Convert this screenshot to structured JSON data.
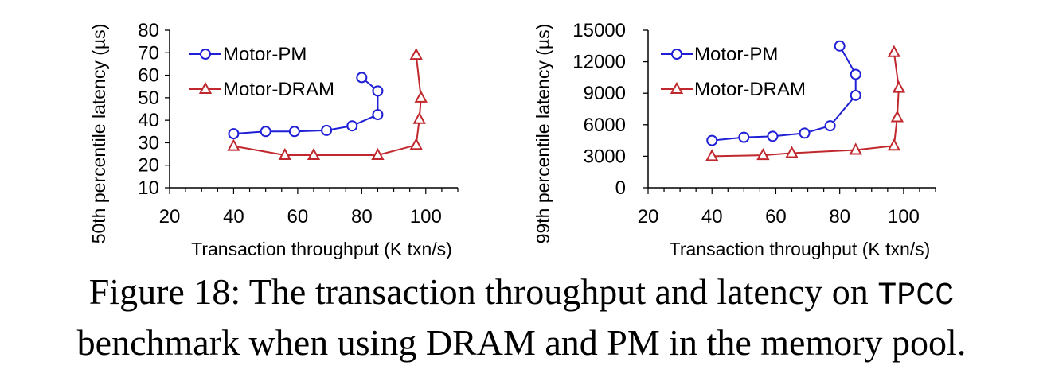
{
  "chart_data": [
    {
      "type": "line",
      "xlabel": "Transaction throughput (K txn/s)",
      "ylabel": "50th percentile latency (µs)",
      "xlim": [
        20,
        110
      ],
      "ylim": [
        10,
        80
      ],
      "xticks": [
        20,
        40,
        60,
        80,
        100
      ],
      "yticks": [
        10,
        20,
        30,
        40,
        50,
        60,
        70,
        80
      ],
      "legend_position": "top-left",
      "series": [
        {
          "name": "Motor-PM",
          "color": "#1f1fd6",
          "marker": "circle",
          "x": [
            40,
            50,
            59,
            69,
            77,
            85,
            85,
            80
          ],
          "y": [
            34,
            35,
            35,
            35.5,
            37.5,
            42.5,
            53,
            59
          ]
        },
        {
          "name": "Motor-DRAM",
          "color": "#c0282d",
          "marker": "triangle",
          "x": [
            40,
            56,
            65,
            85,
            97,
            98,
            98.5,
            97
          ],
          "y": [
            28.5,
            24.5,
            24.5,
            24.5,
            29,
            40.5,
            50,
            69
          ]
        }
      ]
    },
    {
      "type": "line",
      "xlabel": "Transaction throughput (K txn/s)",
      "ylabel": "99th percentile latency (µs)",
      "xlim": [
        20,
        110
      ],
      "ylim": [
        0,
        15000
      ],
      "xticks": [
        20,
        40,
        60,
        80,
        100
      ],
      "yticks": [
        0,
        3000,
        6000,
        9000,
        12000,
        15000
      ],
      "legend_position": "top-left",
      "series": [
        {
          "name": "Motor-PM",
          "color": "#1f1fd6",
          "marker": "circle",
          "x": [
            40,
            50,
            59,
            69,
            77,
            85,
            85,
            80
          ],
          "y": [
            4500,
            4800,
            4900,
            5200,
            5900,
            8800,
            10800,
            13500
          ]
        },
        {
          "name": "Motor-DRAM",
          "color": "#c0282d",
          "marker": "triangle",
          "x": [
            40,
            56,
            65,
            85,
            97,
            98,
            98.5,
            97
          ],
          "y": [
            3000,
            3100,
            3300,
            3600,
            4000,
            6700,
            9500,
            12900
          ]
        }
      ]
    }
  ],
  "caption": {
    "prefix": "Figure 18: The transaction throughput and latency on ",
    "code": "TPCC",
    "line2": "benchmark when using DRAM and PM in the memory pool."
  }
}
